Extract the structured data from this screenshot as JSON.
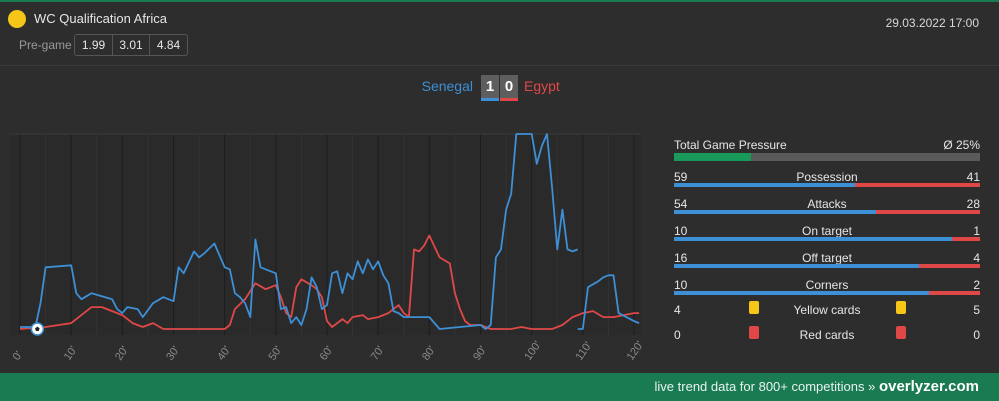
{
  "header": {
    "league": "WC Qualification Africa",
    "datetime": "29.03.2022 17:00",
    "pregame_label": "Pre-game",
    "odds": [
      "1.99",
      "3.01",
      "4.84"
    ],
    "league_color": "#f5c518"
  },
  "match": {
    "home": "Senegal",
    "away": "Egypt",
    "home_score": "1",
    "away_score": "0",
    "home_color": "#3d8fd6",
    "away_color": "#e04848"
  },
  "chart_data": {
    "type": "line",
    "x_ticks": [
      "0'",
      "10'",
      "20'",
      "30'",
      "40'",
      "50'",
      "60'",
      "70'",
      "80'",
      "90'",
      "100'",
      "110'",
      "120'"
    ],
    "xlim": [
      0,
      120
    ],
    "ylim": [
      0,
      100
    ],
    "grid": true,
    "goal_event": {
      "minute": 3,
      "team": "home",
      "icon": "soccer-ball-icon"
    },
    "series": [
      {
        "name": "Senegal",
        "color": "#3d8fd6",
        "points": [
          [
            0,
            3
          ],
          [
            3,
            3
          ],
          [
            4,
            15
          ],
          [
            5,
            33
          ],
          [
            10,
            34
          ],
          [
            11,
            20
          ],
          [
            12,
            17
          ],
          [
            14,
            20
          ],
          [
            18,
            17
          ],
          [
            19,
            12
          ],
          [
            20,
            10
          ],
          [
            21,
            13
          ],
          [
            23,
            12
          ],
          [
            24,
            8
          ],
          [
            26,
            15
          ],
          [
            28,
            18
          ],
          [
            30,
            16
          ],
          [
            31,
            33
          ],
          [
            32,
            30
          ],
          [
            34,
            41
          ],
          [
            35,
            38
          ],
          [
            36,
            40
          ],
          [
            38,
            45
          ],
          [
            40,
            33
          ],
          [
            41,
            32
          ],
          [
            42,
            20
          ],
          [
            43,
            18
          ],
          [
            44,
            15
          ],
          [
            45,
            8
          ],
          [
            46,
            47
          ],
          [
            47,
            33
          ],
          [
            50,
            30
          ],
          [
            51,
            12
          ],
          [
            52,
            13
          ],
          [
            53,
            5
          ],
          [
            54,
            8
          ],
          [
            55,
            4
          ],
          [
            56,
            12
          ],
          [
            57,
            28
          ],
          [
            58,
            23
          ],
          [
            59,
            12
          ],
          [
            60,
            14
          ],
          [
            61,
            30
          ],
          [
            62,
            31
          ],
          [
            63,
            20
          ],
          [
            64,
            30
          ],
          [
            65,
            27
          ],
          [
            66,
            36
          ],
          [
            67,
            30
          ],
          [
            68,
            37
          ],
          [
            69,
            32
          ],
          [
            70,
            36
          ],
          [
            71,
            29
          ],
          [
            72,
            25
          ],
          [
            73,
            11
          ],
          [
            74,
            10
          ],
          [
            75,
            8
          ],
          [
            80,
            8
          ],
          [
            81,
            5
          ],
          [
            82,
            2
          ],
          [
            90,
            4
          ],
          [
            91,
            2
          ],
          [
            92,
            4
          ],
          [
            93,
            38
          ],
          [
            94,
            42
          ],
          [
            95,
            62
          ],
          [
            96,
            70
          ],
          [
            97,
            100
          ],
          [
            100,
            100
          ],
          [
            101,
            85
          ],
          [
            102,
            94
          ],
          [
            103,
            100
          ],
          [
            104,
            73
          ],
          [
            105,
            42
          ],
          [
            106,
            62
          ],
          [
            107,
            42
          ],
          [
            108,
            41
          ],
          [
            109,
            42
          ]
        ],
        "segments_extra": [
          [
            [
              109,
              2
            ],
            [
              110,
              2
            ],
            [
              111,
              23
            ],
            [
              113,
              26
            ],
            [
              114,
              28
            ],
            [
              115,
              29
            ],
            [
              116,
              29
            ],
            [
              117,
              10
            ],
            [
              120,
              6
            ],
            [
              121,
              5
            ]
          ]
        ]
      },
      {
        "name": "Egypt",
        "color": "#e04848",
        "points": [
          [
            0,
            2
          ],
          [
            5,
            3
          ],
          [
            10,
            5
          ],
          [
            12,
            9
          ],
          [
            14,
            13
          ],
          [
            16,
            13
          ],
          [
            18,
            11
          ],
          [
            20,
            9
          ],
          [
            22,
            5
          ],
          [
            24,
            3
          ],
          [
            26,
            5
          ],
          [
            28,
            2
          ],
          [
            30,
            2
          ],
          [
            35,
            2
          ],
          [
            40,
            2
          ],
          [
            41,
            4
          ],
          [
            42,
            12
          ],
          [
            44,
            17
          ],
          [
            46,
            25
          ],
          [
            48,
            22
          ],
          [
            50,
            24
          ],
          [
            51,
            18
          ],
          [
            52,
            10
          ],
          [
            53,
            8
          ],
          [
            54,
            23
          ],
          [
            55,
            27
          ],
          [
            57,
            24
          ],
          [
            58,
            22
          ],
          [
            59,
            18
          ],
          [
            60,
            6
          ],
          [
            61,
            3
          ],
          [
            62,
            5
          ],
          [
            63,
            7
          ],
          [
            64,
            5
          ],
          [
            65,
            8
          ],
          [
            67,
            9
          ],
          [
            68,
            7
          ],
          [
            70,
            8
          ],
          [
            72,
            10
          ],
          [
            74,
            14
          ],
          [
            75,
            10
          ],
          [
            76,
            8
          ],
          [
            77,
            42
          ],
          [
            78,
            41
          ],
          [
            79,
            44
          ],
          [
            80,
            49
          ],
          [
            82,
            38
          ],
          [
            84,
            35
          ],
          [
            85,
            20
          ],
          [
            86,
            12
          ],
          [
            87,
            6
          ],
          [
            88,
            4
          ],
          [
            90,
            4
          ],
          [
            92,
            2
          ],
          [
            94,
            2
          ],
          [
            96,
            2
          ],
          [
            98,
            3
          ],
          [
            100,
            2
          ],
          [
            102,
            2
          ],
          [
            104,
            2
          ],
          [
            106,
            4
          ],
          [
            108,
            8
          ],
          [
            110,
            10
          ],
          [
            112,
            11
          ],
          [
            114,
            8
          ],
          [
            116,
            8
          ],
          [
            118,
            9
          ],
          [
            120,
            10
          ],
          [
            121,
            10
          ]
        ]
      }
    ]
  },
  "stats": {
    "pressure": {
      "label": "Total Game Pressure",
      "value": "Ø 25%",
      "fraction": 0.25
    },
    "rows": [
      {
        "home": "59",
        "name": "Possession",
        "away": "41"
      },
      {
        "home": "54",
        "name": "Attacks",
        "away": "28"
      },
      {
        "home": "10",
        "name": "On target",
        "away": "1"
      },
      {
        "home": "16",
        "name": "Off target",
        "away": "4"
      },
      {
        "home": "10",
        "name": "Corners",
        "away": "2"
      }
    ],
    "yellow": {
      "home": "4",
      "name": "Yellow cards",
      "away": "5",
      "color": "#f5c518"
    },
    "red": {
      "home": "0",
      "name": "Red cards",
      "away": "0",
      "color": "#e04848"
    }
  },
  "footer": {
    "text": "live trend data for 800+ competitions »",
    "brand": "overlyzer.com"
  }
}
